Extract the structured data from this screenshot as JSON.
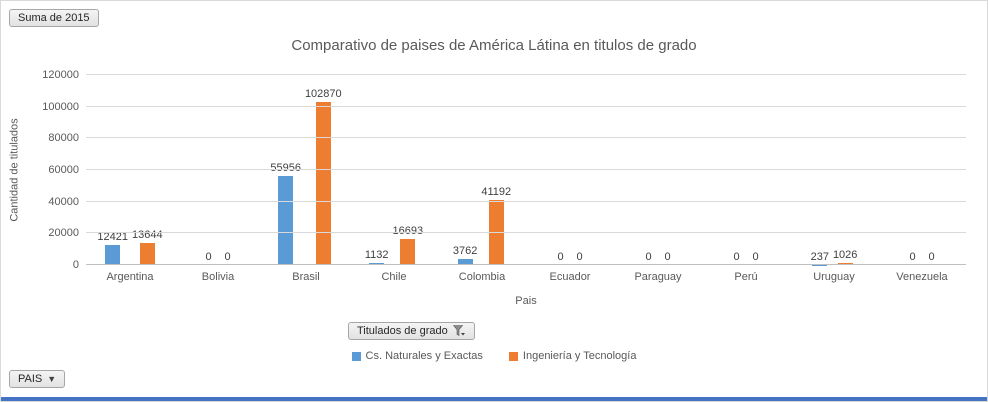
{
  "chart_data": {
    "type": "bar",
    "title": "Comparativo de paises de América Látina en titulos de grado",
    "xlabel": "Pais",
    "ylabel": "Cantidad de titulados",
    "ylim": [
      0,
      120000
    ],
    "yticks": [
      0,
      20000,
      40000,
      60000,
      80000,
      100000,
      120000
    ],
    "grid": true,
    "legend_position": "bottom",
    "categories": [
      "Argentina",
      "Bolivia",
      "Brasil",
      "Chile",
      "Colombia",
      "Ecuador",
      "Paraguay",
      "Perú",
      "Uruguay",
      "Venezuela"
    ],
    "series": [
      {
        "name": "Cs. Naturales y Exactas",
        "color": "#5b9bd5",
        "values": [
          12421,
          0,
          55956,
          1132,
          3762,
          0,
          0,
          0,
          237,
          0
        ]
      },
      {
        "name": "Ingeniería y Tecnología",
        "color": "#ed7d31",
        "values": [
          13644,
          0,
          102870,
          16693,
          41192,
          0,
          0,
          0,
          1026,
          0
        ]
      }
    ]
  },
  "pivot_buttons": {
    "value_button": "Suma de 2015",
    "series_button": "Titulados de grado",
    "axis_button": "PAIS",
    "axis_caret": "▼"
  },
  "colors": {
    "series1": "#5b9bd5",
    "series2": "#ed7d31",
    "bottom_strip": "#4472c4"
  }
}
